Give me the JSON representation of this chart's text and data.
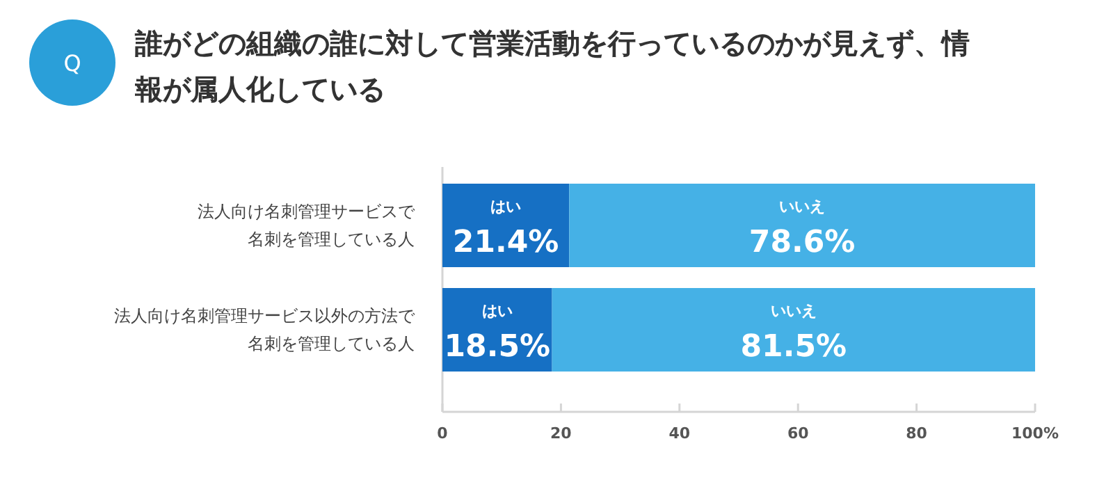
{
  "chart_data": {
    "type": "bar",
    "orientation": "horizontal",
    "stacked": true,
    "title": "誰がどの組織の誰に対して営業活動を行っているのかが見えず、情報が属人化している",
    "annotations": [
      "Q"
    ],
    "categories": [
      "法人向け名刺管理サービスで名刺を管理している人",
      "法人向け名刺管理サービス以外の方法で名刺を管理している人"
    ],
    "series": [
      {
        "name": "はい",
        "color": "#1670c4",
        "values": [
          21.4,
          18.5
        ],
        "value_labels": [
          "21.4%",
          "18.5%"
        ]
      },
      {
        "name": "いいえ",
        "color": "#45b1e6",
        "values": [
          78.6,
          81.5
        ],
        "value_labels": [
          "78.6%",
          "81.5%"
        ]
      }
    ],
    "xlim": [
      0,
      100
    ],
    "xticks": [
      0,
      20,
      40,
      60,
      80,
      {
        "value": 100,
        "label": "100%"
      }
    ],
    "legend": false
  }
}
